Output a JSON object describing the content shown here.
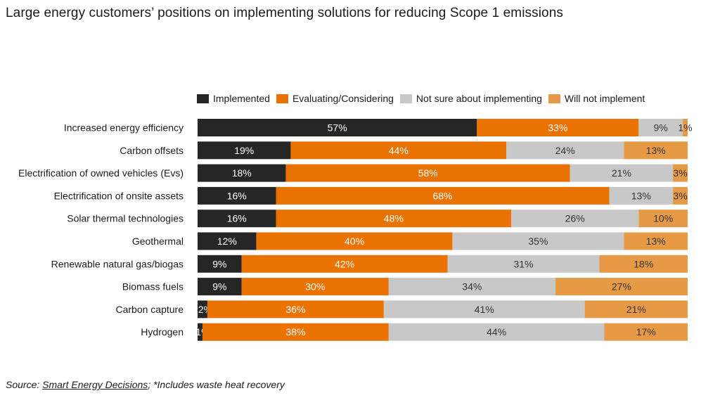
{
  "title": "Large energy customers’ positions on implementing solutions for reducing Scope 1 emissions",
  "footer": {
    "prefix": "Source: ",
    "link_text": "Smart Energy Decisions",
    "suffix": "; *Includes waste heat recovery"
  },
  "colors": {
    "Implemented": "#262626",
    "Evaluating/Considering": "#E97200",
    "Not sure about implementing": "#C8C8C8",
    "Will not implement": "#E69A46"
  },
  "chart_data": {
    "type": "bar",
    "orientation": "horizontal",
    "stacked": true,
    "legend_position": "top",
    "grid": false,
    "xlim": [
      0,
      100
    ],
    "categories": [
      "Increased energy efficiency",
      "Carbon offsets",
      "Electrification of owned vehicles (Evs)",
      "Electrification of onsite assets",
      "Solar thermal technologies",
      "Geothermal",
      "Renewable natural gas/biogas",
      "Biomass fuels",
      "Carbon capture",
      "Hydrogen"
    ],
    "series": [
      {
        "name": "Implemented",
        "values": [
          57,
          19,
          18,
          16,
          16,
          12,
          9,
          9,
          2,
          1
        ]
      },
      {
        "name": "Evaluating/Considering",
        "values": [
          33,
          44,
          58,
          68,
          48,
          40,
          42,
          30,
          36,
          38
        ]
      },
      {
        "name": "Not sure about implementing",
        "values": [
          9,
          24,
          21,
          13,
          26,
          35,
          31,
          34,
          41,
          44
        ]
      },
      {
        "name": "Will not implement",
        "values": [
          1,
          13,
          3,
          3,
          10,
          13,
          18,
          27,
          21,
          17
        ]
      }
    ]
  }
}
